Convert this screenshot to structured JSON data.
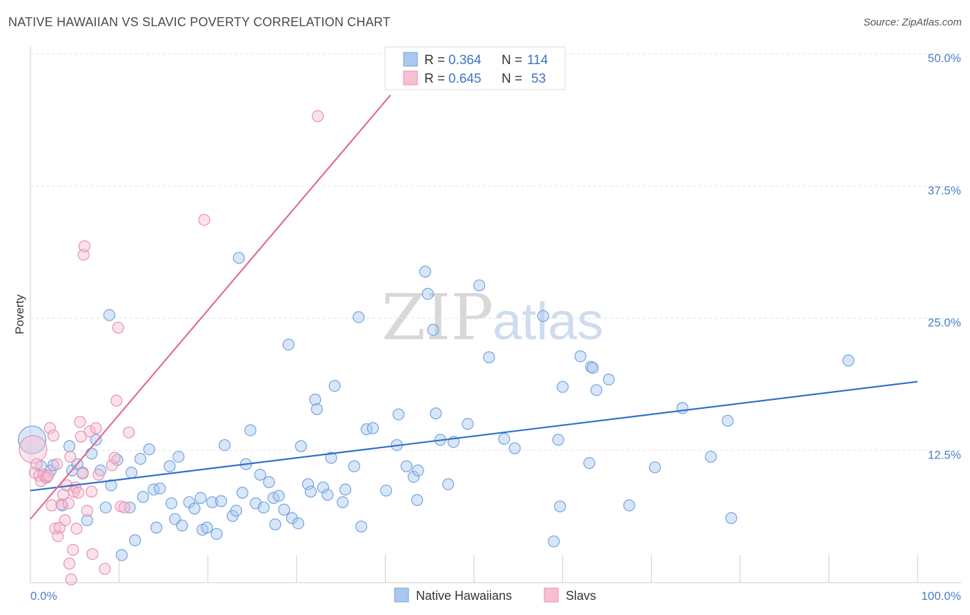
{
  "title": "NATIVE HAWAIIAN VS SLAVIC POVERTY CORRELATION CHART",
  "source": "Source: ZipAtlas.com",
  "watermark": {
    "part1": "ZIP",
    "part2": "atlas"
  },
  "colors": {
    "blue": "#6fa3e0",
    "blue_fill": "#aac8ee",
    "blue_line": "#2f6fcc",
    "pink": "#e890b0",
    "pink_fill": "#f6bfd2",
    "pink_line": "#e06a97",
    "grid": "#e2e2e2",
    "axis_text": "#4a7fc8"
  },
  "legend": {
    "r_label": "R =",
    "n_label": "N =",
    "series": [
      {
        "r": "0.364",
        "n": "114"
      },
      {
        "r": "0.645",
        "n": "53"
      }
    ]
  },
  "bottom_legend": [
    "Native Hawaiians",
    "Slavs"
  ],
  "chart_data": {
    "type": "scatter",
    "title": "NATIVE HAWAIIAN VS SLAVIC POVERTY CORRELATION CHART",
    "xlabel": "",
    "ylabel": "Poverty",
    "xlim": [
      0,
      100
    ],
    "ylim": [
      0,
      50
    ],
    "x_tick_labels": [
      "0.0%",
      "100.0%"
    ],
    "y_ticks": [
      12.5,
      25.0,
      37.5,
      50.0
    ],
    "y_tick_labels": [
      "12.5%",
      "25.0%",
      "37.5%",
      "50.0%"
    ],
    "grid": true,
    "legend_position": "top-center",
    "series": [
      {
        "name": "Native Hawaiians",
        "R": 0.364,
        "N": 114,
        "trend": {
          "x": [
            0,
            100
          ],
          "y": [
            8.7,
            19.0
          ]
        },
        "points": [
          [
            0.2,
            13.5
          ],
          [
            1.2,
            11.0
          ],
          [
            1.8,
            10.0
          ],
          [
            2.3,
            10.6
          ],
          [
            2.6,
            11.1
          ],
          [
            3.6,
            7.3
          ],
          [
            4.4,
            12.9
          ],
          [
            4.7,
            10.6
          ],
          [
            5.3,
            11.2
          ],
          [
            5.9,
            10.4
          ],
          [
            6.4,
            5.9
          ],
          [
            6.9,
            12.2
          ],
          [
            7.4,
            13.5
          ],
          [
            7.9,
            10.6
          ],
          [
            8.5,
            7.1
          ],
          [
            8.9,
            25.3
          ],
          [
            9.1,
            9.2
          ],
          [
            9.8,
            11.6
          ],
          [
            10.3,
            2.6
          ],
          [
            11.2,
            7.1
          ],
          [
            11.4,
            10.4
          ],
          [
            11.8,
            4.0
          ],
          [
            12.4,
            11.7
          ],
          [
            12.7,
            8.1
          ],
          [
            13.4,
            12.6
          ],
          [
            13.9,
            8.8
          ],
          [
            14.2,
            5.2
          ],
          [
            14.6,
            8.9
          ],
          [
            15.7,
            11.0
          ],
          [
            15.9,
            7.5
          ],
          [
            16.3,
            6.0
          ],
          [
            16.7,
            11.9
          ],
          [
            17.1,
            5.4
          ],
          [
            17.9,
            7.6
          ],
          [
            18.5,
            7.0
          ],
          [
            19.2,
            8.0
          ],
          [
            19.4,
            5.0
          ],
          [
            19.9,
            5.2
          ],
          [
            20.5,
            7.6
          ],
          [
            21.0,
            4.6
          ],
          [
            21.5,
            7.7
          ],
          [
            21.9,
            13.0
          ],
          [
            22.8,
            6.3
          ],
          [
            23.2,
            6.8
          ],
          [
            23.5,
            30.7
          ],
          [
            23.9,
            8.5
          ],
          [
            24.3,
            11.2
          ],
          [
            24.8,
            14.4
          ],
          [
            25.4,
            7.5
          ],
          [
            25.9,
            10.2
          ],
          [
            26.3,
            7.1
          ],
          [
            26.9,
            9.5
          ],
          [
            27.4,
            8.0
          ],
          [
            27.6,
            5.5
          ],
          [
            28.0,
            8.2
          ],
          [
            28.6,
            6.9
          ],
          [
            29.1,
            22.5
          ],
          [
            29.5,
            6.1
          ],
          [
            30.2,
            5.6
          ],
          [
            30.5,
            12.9
          ],
          [
            31.3,
            9.3
          ],
          [
            31.6,
            8.6
          ],
          [
            32.1,
            17.3
          ],
          [
            32.3,
            16.4
          ],
          [
            33.0,
            9.0
          ],
          [
            33.5,
            8.3
          ],
          [
            33.9,
            11.8
          ],
          [
            34.3,
            18.6
          ],
          [
            35.2,
            7.6
          ],
          [
            35.5,
            8.8
          ],
          [
            36.5,
            11.0
          ],
          [
            37.0,
            25.1
          ],
          [
            37.3,
            5.3
          ],
          [
            37.9,
            14.5
          ],
          [
            38.6,
            14.6
          ],
          [
            40.1,
            8.7
          ],
          [
            41.3,
            13.0
          ],
          [
            41.5,
            15.9
          ],
          [
            42.4,
            11.0
          ],
          [
            43.2,
            10.0
          ],
          [
            43.6,
            7.8
          ],
          [
            43.7,
            10.6
          ],
          [
            44.5,
            29.4
          ],
          [
            44.8,
            27.3
          ],
          [
            45.4,
            23.9
          ],
          [
            45.7,
            16.0
          ],
          [
            46.2,
            13.5
          ],
          [
            47.1,
            9.3
          ],
          [
            47.7,
            13.3
          ],
          [
            49.3,
            15.0
          ],
          [
            50.6,
            28.1
          ],
          [
            51.7,
            21.3
          ],
          [
            53.4,
            13.6
          ],
          [
            54.6,
            12.7
          ],
          [
            57.8,
            25.2
          ],
          [
            59.0,
            3.9
          ],
          [
            59.5,
            13.5
          ],
          [
            59.7,
            7.2
          ],
          [
            60.0,
            18.5
          ],
          [
            62.0,
            21.4
          ],
          [
            63.0,
            11.3
          ],
          [
            63.2,
            20.4
          ],
          [
            63.4,
            20.3
          ],
          [
            63.8,
            18.2
          ],
          [
            65.2,
            19.2
          ],
          [
            67.5,
            7.3
          ],
          [
            70.4,
            10.9
          ],
          [
            73.5,
            16.5
          ],
          [
            76.7,
            11.9
          ],
          [
            78.6,
            15.3
          ],
          [
            79.0,
            6.1
          ],
          [
            92.2,
            21.0
          ]
        ]
      },
      {
        "name": "Slavs",
        "R": 0.645,
        "N": 53,
        "trend": {
          "x": [
            0,
            40.6
          ],
          "y": [
            6.0,
            46.1
          ]
        },
        "points": [
          [
            0.3,
            12.6
          ],
          [
            0.5,
            10.4
          ],
          [
            0.7,
            11.2
          ],
          [
            1.0,
            10.1
          ],
          [
            1.2,
            9.6
          ],
          [
            1.5,
            10.2
          ],
          [
            1.8,
            9.9
          ],
          [
            2.0,
            10.1
          ],
          [
            2.2,
            14.6
          ],
          [
            2.4,
            7.3
          ],
          [
            2.6,
            13.9
          ],
          [
            2.8,
            5.1
          ],
          [
            3.0,
            11.2
          ],
          [
            3.1,
            4.4
          ],
          [
            3.3,
            5.2
          ],
          [
            3.5,
            7.4
          ],
          [
            3.7,
            8.3
          ],
          [
            3.9,
            5.9
          ],
          [
            4.1,
            9.2
          ],
          [
            4.3,
            7.5
          ],
          [
            4.4,
            1.8
          ],
          [
            4.5,
            11.9
          ],
          [
            4.6,
            0.3
          ],
          [
            4.8,
            3.1
          ],
          [
            4.9,
            8.6
          ],
          [
            5.1,
            9.0
          ],
          [
            5.2,
            5.1
          ],
          [
            5.4,
            8.5
          ],
          [
            5.6,
            15.2
          ],
          [
            5.7,
            13.8
          ],
          [
            5.9,
            10.3
          ],
          [
            6.0,
            31.0
          ],
          [
            6.1,
            31.8
          ],
          [
            6.4,
            6.8
          ],
          [
            6.7,
            14.3
          ],
          [
            6.9,
            8.6
          ],
          [
            7.0,
            2.7
          ],
          [
            7.4,
            14.6
          ],
          [
            7.7,
            10.2
          ],
          [
            8.4,
            1.3
          ],
          [
            9.2,
            11.1
          ],
          [
            9.5,
            11.8
          ],
          [
            9.7,
            17.2
          ],
          [
            9.9,
            24.1
          ],
          [
            10.2,
            7.2
          ],
          [
            10.6,
            7.1
          ],
          [
            11.1,
            14.2
          ],
          [
            19.6,
            34.3
          ],
          [
            32.4,
            44.1
          ]
        ]
      }
    ]
  }
}
